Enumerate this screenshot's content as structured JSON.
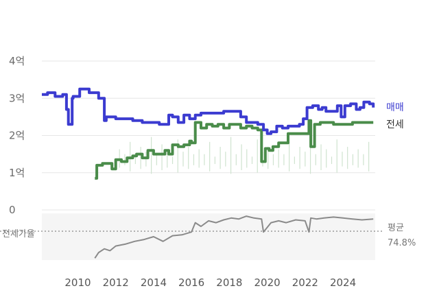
{
  "chart_data": [
    {
      "type": "line",
      "x_ticks": [
        "2010",
        "2012",
        "2014",
        "2016",
        "2018",
        "2020",
        "2022",
        "2024"
      ],
      "y_ticks": [
        {
          "value": 4,
          "label": "4억"
        },
        {
          "value": 3,
          "label": "3억"
        },
        {
          "value": 2,
          "label": "2억"
        },
        {
          "value": 1,
          "label": "1억"
        },
        {
          "value": 0,
          "label": "0"
        }
      ],
      "xlim": [
        2008.1,
        2025.7
      ],
      "ylim": [
        0,
        4
      ],
      "grid": true,
      "colors": {
        "sale": "#3b3bd0",
        "jeonse": "#4a8c4a",
        "volume": "#cfe3cf"
      },
      "series": [
        {
          "name": "매매",
          "x": [
            2008.1,
            2008.4,
            2008.8,
            2009.0,
            2009.2,
            2009.4,
            2009.5,
            2009.6,
            2009.7,
            2009.75,
            2009.9,
            2010.1,
            2010.4,
            2010.6,
            2010.9,
            2011.1,
            2011.4,
            2011.5,
            2011.8,
            2012.0,
            2012.3,
            2012.6,
            2012.9,
            2013.1,
            2013.4,
            2013.7,
            2014.0,
            2014.3,
            2014.6,
            2014.8,
            2015.0,
            2015.3,
            2015.6,
            2015.9,
            2016.2,
            2016.5,
            2016.8,
            2017.1,
            2017.4,
            2017.7,
            2018.0,
            2018.3,
            2018.6,
            2018.9,
            2019.2,
            2019.5,
            2019.8,
            2020.0,
            2020.2,
            2020.5,
            2020.8,
            2021.1,
            2021.4,
            2021.7,
            2021.9,
            2022.1,
            2022.4,
            2022.7,
            2022.9,
            2023.1,
            2023.4,
            2023.7,
            2023.9,
            2024.1,
            2024.4,
            2024.7,
            2024.9,
            2025.1,
            2025.4,
            2025.6
          ],
          "y": [
            3.1,
            3.15,
            3.05,
            3.05,
            3.1,
            2.7,
            2.3,
            2.3,
            3.0,
            3.05,
            3.05,
            3.25,
            3.25,
            3.15,
            3.15,
            3.0,
            2.4,
            2.5,
            2.5,
            2.45,
            2.45,
            2.45,
            2.4,
            2.4,
            2.35,
            2.35,
            2.35,
            2.3,
            2.3,
            2.55,
            2.5,
            2.35,
            2.55,
            2.45,
            2.55,
            2.6,
            2.6,
            2.6,
            2.6,
            2.65,
            2.65,
            2.65,
            2.5,
            2.35,
            2.35,
            2.3,
            2.15,
            2.05,
            2.1,
            2.25,
            2.2,
            2.25,
            2.25,
            2.3,
            2.45,
            2.75,
            2.8,
            2.7,
            2.75,
            2.65,
            2.65,
            2.8,
            2.5,
            2.8,
            2.85,
            2.7,
            2.75,
            2.9,
            2.85,
            2.75
          ]
        },
        {
          "name": "전세",
          "x": [
            2010.9,
            2011.0,
            2011.3,
            2011.6,
            2011.8,
            2012.0,
            2012.3,
            2012.6,
            2012.9,
            2013.1,
            2013.4,
            2013.7,
            2014.0,
            2014.3,
            2014.6,
            2014.8,
            2015.0,
            2015.3,
            2015.6,
            2015.9,
            2016.0,
            2016.2,
            2016.5,
            2016.8,
            2017.1,
            2017.4,
            2017.7,
            2018.0,
            2018.3,
            2018.6,
            2018.9,
            2019.2,
            2019.5,
            2019.7,
            2019.9,
            2020.1,
            2020.3,
            2020.6,
            2020.9,
            2021.1,
            2021.4,
            2021.7,
            2022.0,
            2022.2,
            2022.3,
            2022.5,
            2022.8,
            2023.1,
            2023.5,
            2024.0,
            2024.5,
            2025.0,
            2025.6
          ],
          "y": [
            0.85,
            1.2,
            1.25,
            1.25,
            1.1,
            1.35,
            1.3,
            1.4,
            1.45,
            1.5,
            1.4,
            1.6,
            1.5,
            1.5,
            1.6,
            1.5,
            1.75,
            1.7,
            1.75,
            1.85,
            1.8,
            2.35,
            2.2,
            2.3,
            2.25,
            2.3,
            2.2,
            2.3,
            2.3,
            2.2,
            2.25,
            2.2,
            2.15,
            1.3,
            1.65,
            1.6,
            1.7,
            1.8,
            1.8,
            2.05,
            2.05,
            2.05,
            2.05,
            2.4,
            1.7,
            2.3,
            2.35,
            2.35,
            2.3,
            2.3,
            2.35,
            2.35,
            2.35
          ]
        },
        {
          "name": "전세가율",
          "x": [
            2010.9,
            2011.1,
            2011.4,
            2011.7,
            2012.0,
            2012.5,
            2013.0,
            2013.5,
            2014.0,
            2014.5,
            2015.0,
            2015.5,
            2016.0,
            2016.2,
            2016.5,
            2016.9,
            2017.3,
            2017.7,
            2018.1,
            2018.5,
            2018.9,
            2019.3,
            2019.7,
            2019.8,
            2020.2,
            2020.6,
            2021.0,
            2021.5,
            2022.0,
            2022.2,
            2022.3,
            2022.6,
            2023.0,
            2023.5,
            2024.0,
            2024.5,
            2025.0,
            2025.6
          ],
          "y": [
            32,
            38,
            42,
            40,
            45,
            47,
            50,
            52,
            55,
            50,
            56,
            57,
            60,
            70,
            66,
            72,
            70,
            73,
            75,
            74,
            77,
            75,
            74,
            60,
            70,
            72,
            70,
            73,
            72,
            60,
            75,
            74,
            75,
            76,
            75,
            74,
            73,
            74
          ]
        }
      ],
      "ratio_axis": {
        "label": "전세가율",
        "average_label": "평균",
        "average_value": "74.8%",
        "average": 74.8
      }
    }
  ]
}
